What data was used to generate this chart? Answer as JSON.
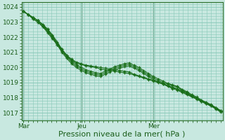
{
  "background_color": "#c8e8e0",
  "plot_bg_color": "#c8e8e0",
  "grid_color": "#88c8b8",
  "line_color": "#1a6e1a",
  "ylim": [
    1016.5,
    1024.3
  ],
  "yticks": [
    1017,
    1018,
    1019,
    1020,
    1021,
    1022,
    1023,
    1024
  ],
  "xlabel": "Pression niveau de la mer( hPa )",
  "xlabel_fontsize": 8,
  "tick_fontsize": 6.5,
  "xtick_labels": [
    "Mar",
    "Jeu",
    "Mer"
  ],
  "xtick_positions": [
    0.0,
    0.295,
    0.66
  ],
  "vline_positions": [
    0.0,
    0.295,
    0.66
  ],
  "series": [
    [
      1023.7,
      1023.5,
      1023.2,
      1023.0,
      1022.7,
      1022.3,
      1021.9,
      1021.5,
      1021.1,
      1020.7,
      1020.5,
      1020.3,
      1020.2,
      1020.1,
      1020.05,
      1020.0,
      1019.9,
      1019.85,
      1019.8,
      1019.75,
      1019.7,
      1019.65,
      1019.6,
      1019.5,
      1019.4,
      1019.3,
      1019.2,
      1019.1,
      1019.0,
      1018.9,
      1018.75,
      1018.6,
      1018.5,
      1018.35,
      1018.2,
      1018.05,
      1017.9,
      1017.75,
      1017.6,
      1017.45,
      1017.3,
      1017.1
    ],
    [
      1023.7,
      1023.5,
      1023.2,
      1023.0,
      1022.7,
      1022.4,
      1022.0,
      1021.6,
      1021.2,
      1020.8,
      1020.55,
      1020.35,
      1020.25,
      1020.15,
      1020.1,
      1020.05,
      1020.0,
      1019.95,
      1019.9,
      1019.85,
      1019.8,
      1019.75,
      1019.7,
      1019.55,
      1019.45,
      1019.35,
      1019.25,
      1019.15,
      1019.05,
      1018.95,
      1018.8,
      1018.65,
      1018.55,
      1018.4,
      1018.25,
      1018.1,
      1017.95,
      1017.8,
      1017.65,
      1017.5,
      1017.35,
      1017.15
    ],
    [
      1023.7,
      1023.5,
      1023.3,
      1023.1,
      1022.8,
      1022.4,
      1022.0,
      1021.5,
      1021.0,
      1020.6,
      1020.25,
      1020.0,
      1019.8,
      1019.65,
      1019.55,
      1019.45,
      1019.4,
      1019.55,
      1019.7,
      1019.85,
      1019.95,
      1020.05,
      1020.1,
      1019.95,
      1019.8,
      1019.6,
      1019.4,
      1019.2,
      1019.05,
      1018.9,
      1018.8,
      1018.7,
      1018.6,
      1018.45,
      1018.3,
      1018.1,
      1017.95,
      1017.75,
      1017.6,
      1017.45,
      1017.25,
      1017.05
    ],
    [
      1023.7,
      1023.5,
      1023.3,
      1023.1,
      1022.8,
      1022.5,
      1022.1,
      1021.6,
      1021.1,
      1020.7,
      1020.35,
      1020.1,
      1019.9,
      1019.75,
      1019.65,
      1019.55,
      1019.5,
      1019.65,
      1019.8,
      1019.95,
      1020.05,
      1020.15,
      1020.2,
      1020.05,
      1019.9,
      1019.7,
      1019.5,
      1019.3,
      1019.15,
      1019.0,
      1018.9,
      1018.8,
      1018.7,
      1018.5,
      1018.35,
      1018.15,
      1018.0,
      1017.8,
      1017.65,
      1017.5,
      1017.3,
      1017.1
    ],
    [
      1023.7,
      1023.5,
      1023.3,
      1023.1,
      1022.85,
      1022.55,
      1022.15,
      1021.7,
      1021.2,
      1020.8,
      1020.45,
      1020.2,
      1020.0,
      1019.85,
      1019.75,
      1019.65,
      1019.6,
      1019.75,
      1019.9,
      1020.05,
      1020.15,
      1020.25,
      1020.3,
      1020.15,
      1020.0,
      1019.8,
      1019.6,
      1019.4,
      1019.25,
      1019.1,
      1018.95,
      1018.85,
      1018.75,
      1018.55,
      1018.4,
      1018.2,
      1018.05,
      1017.85,
      1017.7,
      1017.55,
      1017.35,
      1017.15
    ]
  ]
}
